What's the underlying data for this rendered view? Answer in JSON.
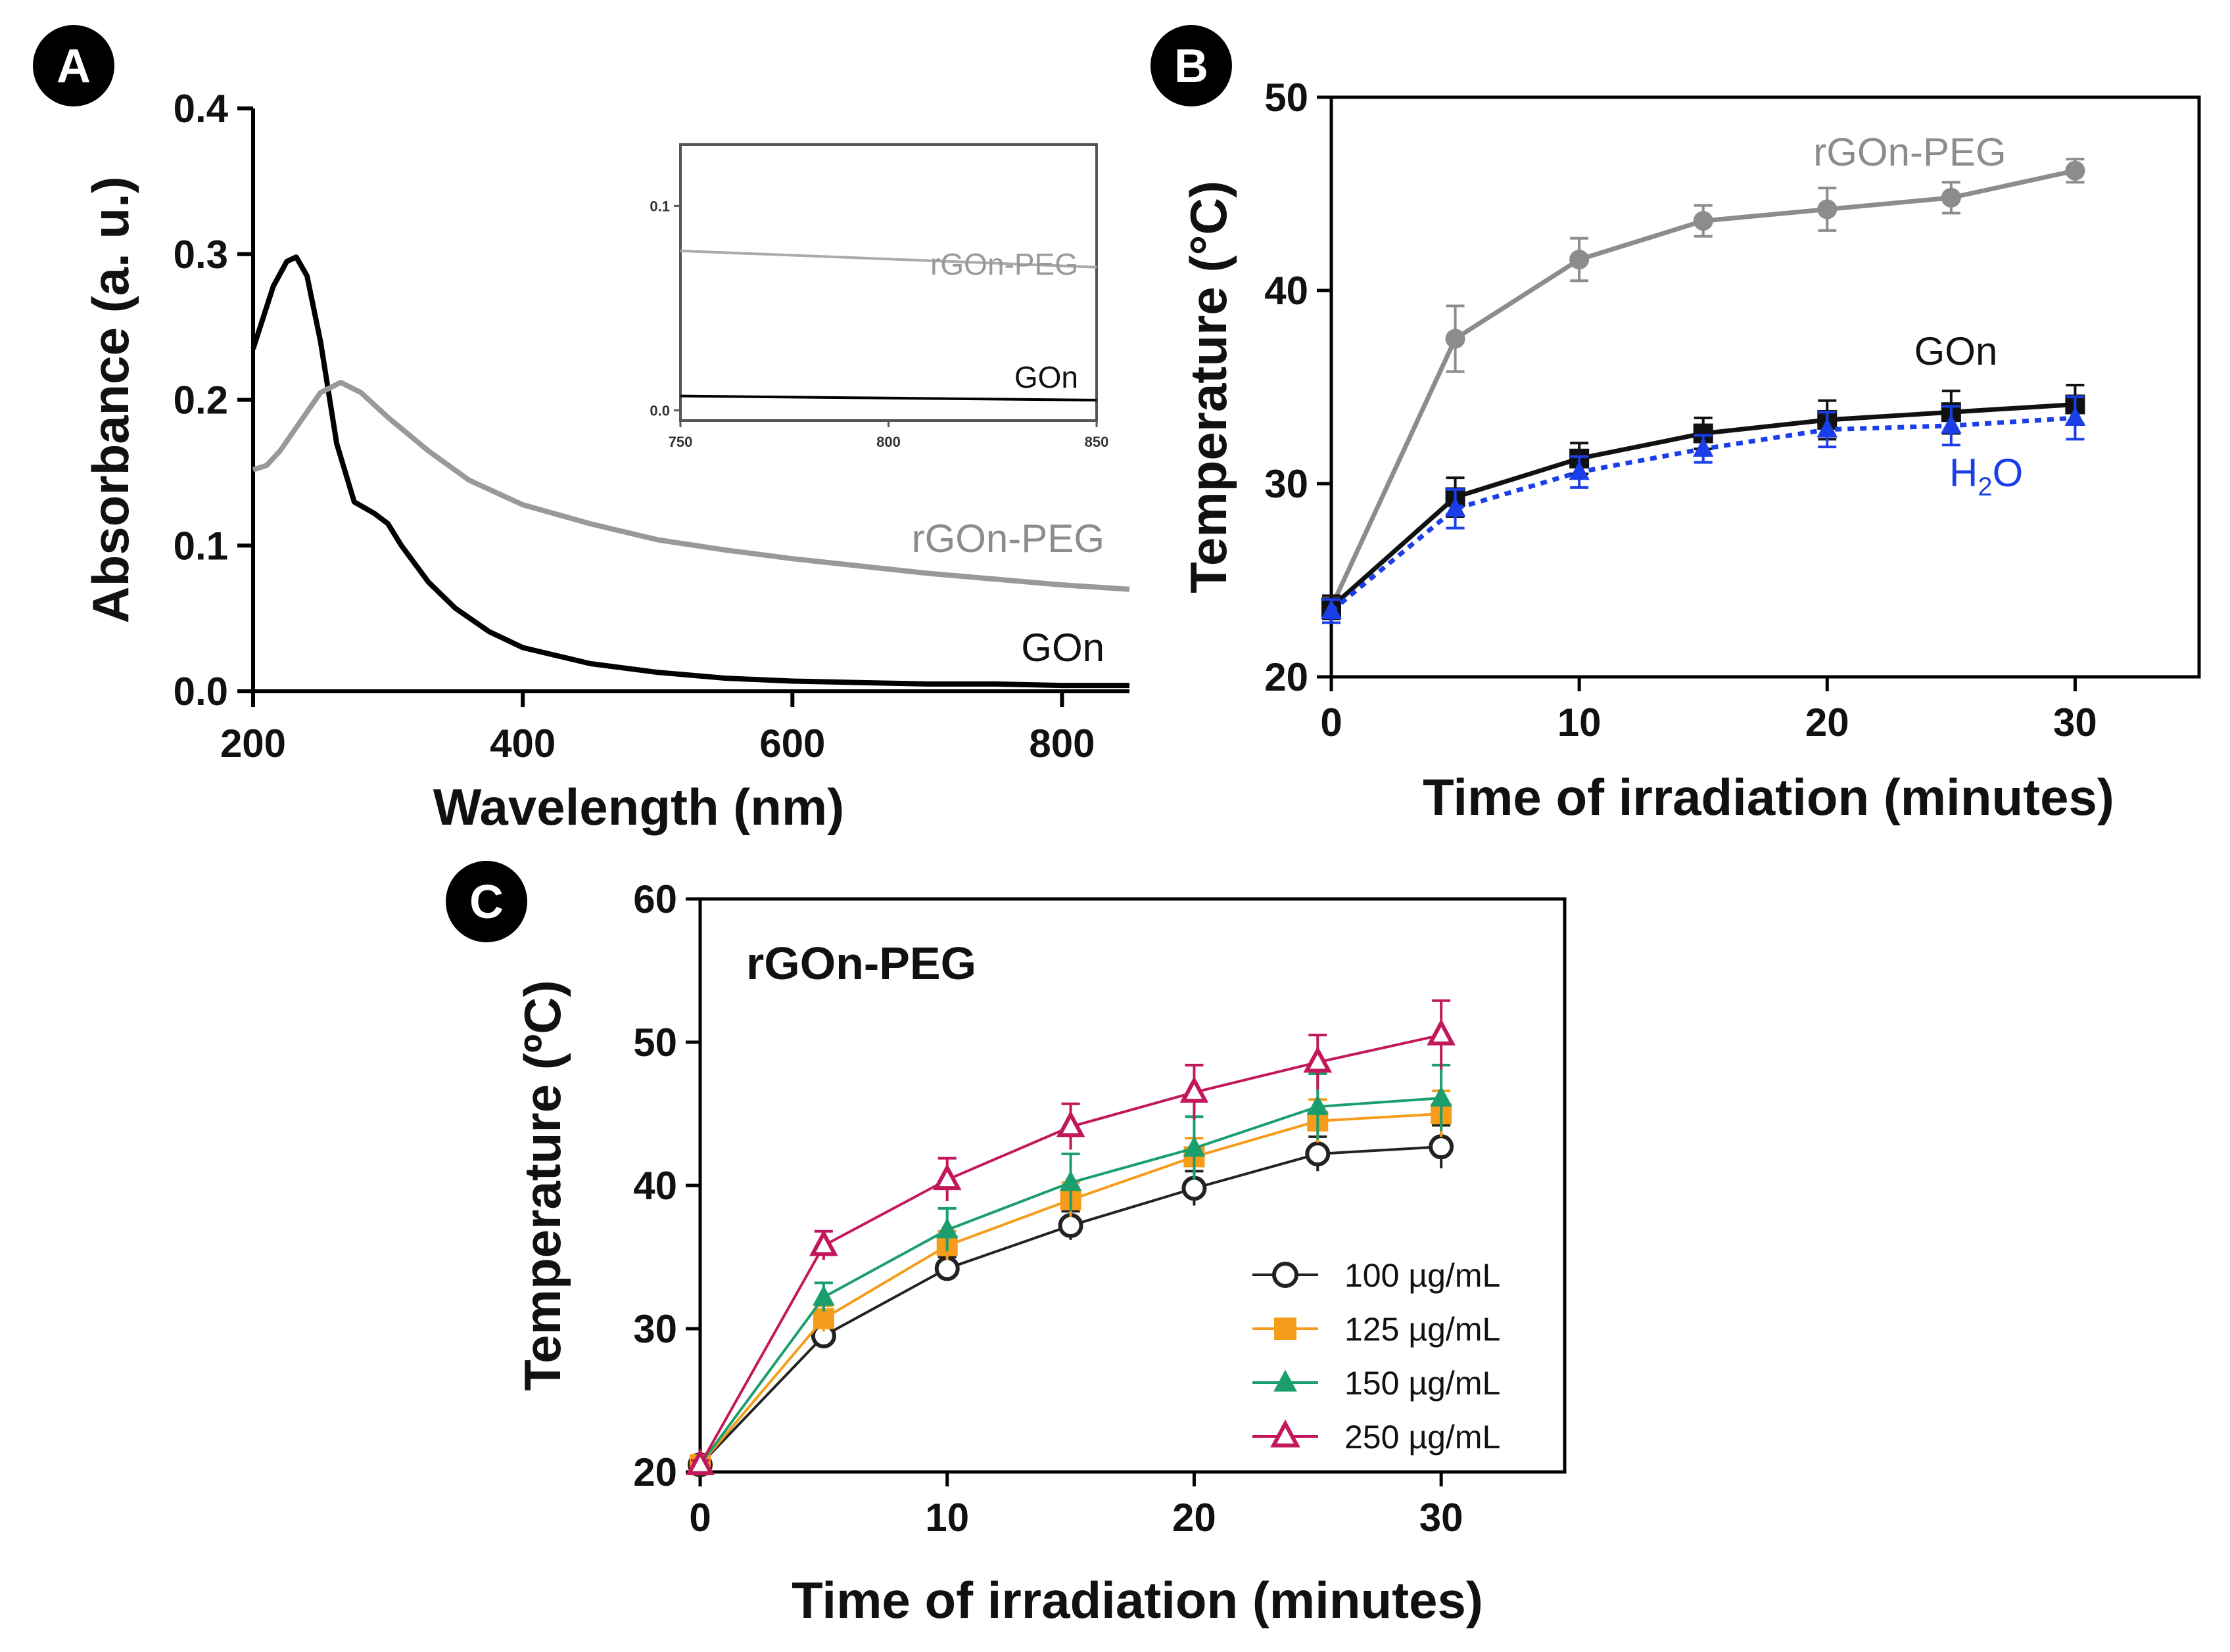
{
  "chart_data": [
    {
      "panel": "A",
      "type": "line",
      "xlabel": "Wavelength (nm)",
      "ylabel": "Absorbance (a. u.)",
      "xlim": [
        200,
        850
      ],
      "ylim": [
        0,
        0.4
      ],
      "xticks": [
        200,
        400,
        600,
        800
      ],
      "yticks": [
        "0.0",
        "0.1",
        "0.2",
        "0.3",
        "0.4"
      ],
      "series": [
        {
          "name": "GOn",
          "color": "#000000",
          "x": [
            200,
            215,
            225,
            232,
            240,
            250,
            262,
            275,
            290,
            300,
            310,
            330,
            350,
            375,
            400,
            450,
            500,
            550,
            600,
            650,
            700,
            750,
            800,
            850
          ],
          "y": [
            0.235,
            0.278,
            0.295,
            0.298,
            0.285,
            0.24,
            0.17,
            0.13,
            0.122,
            0.115,
            0.1,
            0.075,
            0.057,
            0.041,
            0.03,
            0.019,
            0.013,
            0.009,
            0.007,
            0.006,
            0.005,
            0.005,
            0.004,
            0.004
          ]
        },
        {
          "name": "rGOn-PEG",
          "color": "#999999",
          "x": [
            200,
            210,
            220,
            235,
            250,
            265,
            280,
            300,
            330,
            360,
            400,
            450,
            500,
            550,
            600,
            650,
            700,
            750,
            800,
            850
          ],
          "y": [
            0.152,
            0.155,
            0.165,
            0.185,
            0.205,
            0.212,
            0.205,
            0.188,
            0.165,
            0.145,
            0.128,
            0.115,
            0.104,
            0.097,
            0.091,
            0.086,
            0.081,
            0.077,
            0.073,
            0.07
          ]
        }
      ],
      "inset": {
        "xlim": [
          750,
          850
        ],
        "ylim": [
          -0.005,
          0.13
        ],
        "xticks": [
          "750",
          "800",
          "850"
        ],
        "yticks": [
          "0.0",
          "0.1"
        ],
        "series": [
          {
            "name": "rGOn-PEG",
            "color": "#aaaaaa",
            "x": [
              750,
              800,
              850
            ],
            "y": [
              0.078,
              0.074,
              0.07
            ]
          },
          {
            "name": "GOn",
            "color": "#000000",
            "x": [
              750,
              800,
              850
            ],
            "y": [
              0.007,
              0.006,
              0.005
            ]
          }
        ]
      }
    },
    {
      "panel": "B",
      "type": "line",
      "xlabel": "Time of irradiation (minutes)",
      "ylabel": "Temperature (°C)",
      "xlim": [
        0,
        35
      ],
      "ylim": [
        20,
        50
      ],
      "xticks": [
        0,
        10,
        20,
        30
      ],
      "yticks": [
        20,
        30,
        40,
        50
      ],
      "series": [
        {
          "name": "rGOn-PEG",
          "color": "#8c8c8c",
          "marker": "circle",
          "dashed": false,
          "x": [
            0,
            5,
            10,
            15,
            20,
            25,
            30
          ],
          "y": [
            23.6,
            37.5,
            41.6,
            43.6,
            44.2,
            44.8,
            46.2
          ],
          "err": [
            0.6,
            1.7,
            1.1,
            0.8,
            1.1,
            0.8,
            0.6
          ]
        },
        {
          "name": "GOn",
          "color": "#111111",
          "marker": "square",
          "dashed": false,
          "x": [
            0,
            5,
            10,
            15,
            20,
            25,
            30
          ],
          "y": [
            23.6,
            29.3,
            31.3,
            32.6,
            33.3,
            33.7,
            34.1
          ],
          "err": [
            0.6,
            1.0,
            0.8,
            0.8,
            1.0,
            1.1,
            1.0
          ]
        },
        {
          "name": "H2O",
          "color": "#1a3fe8",
          "marker": "triangle",
          "dashed": true,
          "x": [
            0,
            5,
            10,
            15,
            20,
            25,
            30
          ],
          "y": [
            23.4,
            28.7,
            30.6,
            31.8,
            32.8,
            33.0,
            33.4
          ],
          "err": [
            0.6,
            1.0,
            0.8,
            0.7,
            0.9,
            1.0,
            1.1
          ]
        }
      ]
    },
    {
      "panel": "C",
      "type": "line",
      "title": "rGOn-PEG",
      "xlabel": "Time of irradiation (minutes)",
      "ylabel": "Temperature (ºC)",
      "xlim": [
        0,
        35
      ],
      "ylim": [
        20,
        60
      ],
      "xticks": [
        0,
        10,
        20,
        30
      ],
      "yticks": [
        20,
        30,
        40,
        50,
        60
      ],
      "series": [
        {
          "name": "100 µg/mL",
          "color": "#222222",
          "marker": "open-circle",
          "x": [
            0,
            5,
            10,
            15,
            20,
            25,
            30
          ],
          "y": [
            20.5,
            29.5,
            34.2,
            37.2,
            39.8,
            42.2,
            42.7
          ],
          "err": [
            0.3,
            0.8,
            0.8,
            1.0,
            1.2,
            1.2,
            1.5
          ]
        },
        {
          "name": "125 µg/mL",
          "color": "#f59c1a",
          "marker": "square",
          "x": [
            0,
            5,
            10,
            15,
            20,
            25,
            30
          ],
          "y": [
            20.5,
            30.7,
            35.8,
            39.0,
            42.0,
            44.5,
            45.0
          ],
          "err": [
            0.3,
            0.9,
            1.0,
            1.2,
            1.3,
            1.5,
            1.6
          ]
        },
        {
          "name": "150 µg/mL",
          "color": "#1a9e6e",
          "marker": "triangle",
          "x": [
            0,
            5,
            10,
            15,
            20,
            25,
            30
          ],
          "y": [
            20.5,
            32.2,
            36.9,
            40.2,
            42.6,
            45.5,
            46.1
          ],
          "err": [
            0.3,
            1.0,
            1.5,
            2.0,
            2.2,
            2.3,
            2.3
          ]
        },
        {
          "name": "250 µg/mL",
          "color": "#c2185b",
          "marker": "open-triangle",
          "x": [
            0,
            5,
            10,
            15,
            20,
            25,
            30
          ],
          "y": [
            20.5,
            35.8,
            40.4,
            44.1,
            46.5,
            48.6,
            50.5
          ],
          "err": [
            0.3,
            1.0,
            1.5,
            1.6,
            1.9,
            1.9,
            2.4
          ]
        }
      ]
    }
  ]
}
